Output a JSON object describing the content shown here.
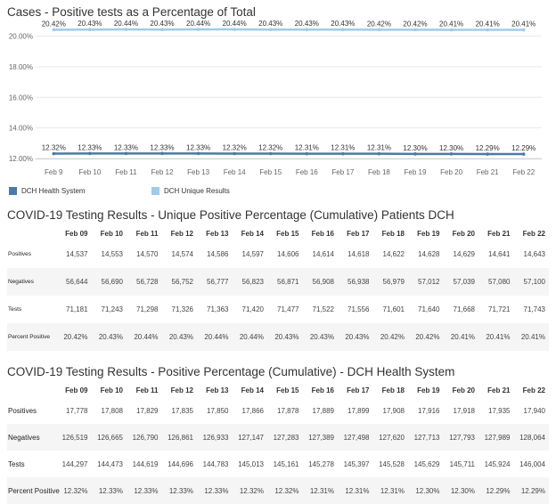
{
  "chart_title": "Cases - Positive tests as a Percentage of Total",
  "chart_data": {
    "type": "line",
    "x": [
      "Feb 9",
      "Feb 10",
      "Feb 11",
      "Feb 12",
      "Feb 13",
      "Feb 14",
      "Feb 15",
      "Feb 16",
      "Feb 17",
      "Feb 18",
      "Feb 19",
      "Feb 20",
      "Feb 21",
      "Feb 22"
    ],
    "y_ticks": [
      "12.00%",
      "14.00%",
      "16.00%",
      "18.00%",
      "20.00%"
    ],
    "ylim": [
      12,
      20.5
    ],
    "series": [
      {
        "name": "DCH Health System",
        "color": "#4e79a7",
        "values": [
          12.32,
          12.33,
          12.33,
          12.33,
          12.33,
          12.32,
          12.32,
          12.31,
          12.31,
          12.31,
          12.3,
          12.3,
          12.29,
          12.29
        ],
        "labels": [
          "12.32%",
          "12.33%",
          "12.33%",
          "12.33%",
          "12.33%",
          "12.32%",
          "12.32%",
          "12.31%",
          "12.31%",
          "12.31%",
          "12.30%",
          "12.30%",
          "12.29%",
          "12.29%"
        ]
      },
      {
        "name": "DCH Unique Results",
        "color": "#a0cbe8",
        "values": [
          20.42,
          20.43,
          20.44,
          20.43,
          20.44,
          20.44,
          20.43,
          20.43,
          20.43,
          20.42,
          20.42,
          20.41,
          20.41,
          20.41
        ],
        "labels": [
          "20.42%",
          "20.43%",
          "20.44%",
          "20.43%",
          "20.44%",
          "20.44%",
          "20.43%",
          "20.43%",
          "20.43%",
          "20.42%",
          "20.42%",
          "20.41%",
          "20.41%",
          "20.41%"
        ]
      }
    ],
    "grid": true
  },
  "legend": [
    {
      "label": "DCH Health System",
      "color": "#4e79a7"
    },
    {
      "label": "DCH Unique Results",
      "color": "#a0cbe8"
    }
  ],
  "table1": {
    "title": "COVID-19 Testing Results - Unique Positive Percentage (Cumulative) Patients DCH",
    "columns": [
      "Feb 09",
      "Feb 10",
      "Feb 11",
      "Feb 12",
      "Feb 13",
      "Feb 14",
      "Feb 15",
      "Feb 16",
      "Feb 17",
      "Feb 18",
      "Feb 19",
      "Feb 20",
      "Feb 21",
      "Feb 22"
    ],
    "rows": [
      {
        "label": "Positives",
        "values": [
          "14,537",
          "14,553",
          "14,570",
          "14,574",
          "14,586",
          "14,597",
          "14,606",
          "14,614",
          "14,618",
          "14,622",
          "14,628",
          "14,629",
          "14,641",
          "14,643"
        ]
      },
      {
        "label": "Negatives",
        "values": [
          "56,644",
          "56,690",
          "56,728",
          "56,752",
          "56,777",
          "56,823",
          "56,871",
          "56,908",
          "56,938",
          "56,979",
          "57,012",
          "57,039",
          "57,080",
          "57,100"
        ]
      },
      {
        "label": "Tests",
        "values": [
          "71,181",
          "71,243",
          "71,298",
          "71,326",
          "71,363",
          "71,420",
          "71,477",
          "71,522",
          "71,556",
          "71,601",
          "71,640",
          "71,668",
          "71,721",
          "71,743"
        ]
      },
      {
        "label": "Percent Positive",
        "values": [
          "20.42%",
          "20.43%",
          "20.44%",
          "20.43%",
          "20.44%",
          "20.44%",
          "20.43%",
          "20.43%",
          "20.43%",
          "20.42%",
          "20.42%",
          "20.41%",
          "20.41%",
          "20.41%"
        ]
      }
    ]
  },
  "table2": {
    "title": "COVID-19 Testing Results - Positive Percentage (Cumulative) - DCH Health System",
    "columns": [
      "Feb 09",
      "Feb 10",
      "Feb 11",
      "Feb 12",
      "Feb 13",
      "Feb 14",
      "Feb 15",
      "Feb 16",
      "Feb 17",
      "Feb 18",
      "Feb 19",
      "Feb 20",
      "Feb 21",
      "Feb 22"
    ],
    "rows": [
      {
        "label": "Positives",
        "values": [
          "17,778",
          "17,808",
          "17,829",
          "17,835",
          "17,850",
          "17,866",
          "17,878",
          "17,889",
          "17,899",
          "17,908",
          "17,916",
          "17,918",
          "17,935",
          "17,940"
        ]
      },
      {
        "label": "Negatives",
        "values": [
          "126,519",
          "126,665",
          "126,790",
          "126,861",
          "126,933",
          "127,147",
          "127,283",
          "127,389",
          "127,498",
          "127,620",
          "127,713",
          "127,793",
          "127,989",
          "128,064"
        ]
      },
      {
        "label": "Tests",
        "values": [
          "144,297",
          "144,473",
          "144,619",
          "144,696",
          "144,783",
          "145,013",
          "145,161",
          "145,278",
          "145,397",
          "145,528",
          "145,629",
          "145,711",
          "145,924",
          "146,004"
        ]
      },
      {
        "label": "Percent Positive",
        "values": [
          "12.32%",
          "12.33%",
          "12.33%",
          "12.33%",
          "12.33%",
          "12.32%",
          "12.32%",
          "12.31%",
          "12.31%",
          "12.31%",
          "12.30%",
          "12.30%",
          "12.29%",
          "12.29%"
        ]
      }
    ]
  }
}
